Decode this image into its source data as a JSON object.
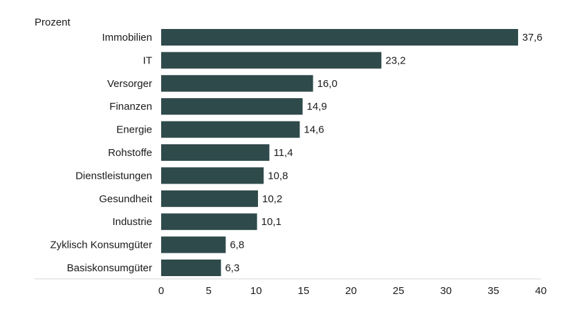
{
  "chart_data": {
    "type": "bar",
    "orientation": "horizontal",
    "unit_label": "Prozent",
    "categories": [
      "Immobilien",
      "IT",
      "Versorger",
      "Finanzen",
      "Energie",
      "Rohstoffe",
      "Dienstleistungen",
      "Gesundheit",
      "Industrie",
      "Zyklisch Konsumgüter",
      "Basiskonsumgüter"
    ],
    "values": [
      37.6,
      23.2,
      16.0,
      14.9,
      14.6,
      11.4,
      10.8,
      10.2,
      10.1,
      6.8,
      6.3
    ],
    "value_labels": [
      "37,6",
      "23,2",
      "16,0",
      "14,9",
      "14,6",
      "11,4",
      "10,8",
      "10,2",
      "10,1",
      "6,8",
      "6,3"
    ],
    "x_ticks": [
      0,
      5,
      10,
      15,
      20,
      25,
      30,
      35,
      40
    ],
    "xlim": [
      0,
      40
    ],
    "grid": false,
    "legend": "none",
    "bar_color": "#2f4a4a"
  }
}
